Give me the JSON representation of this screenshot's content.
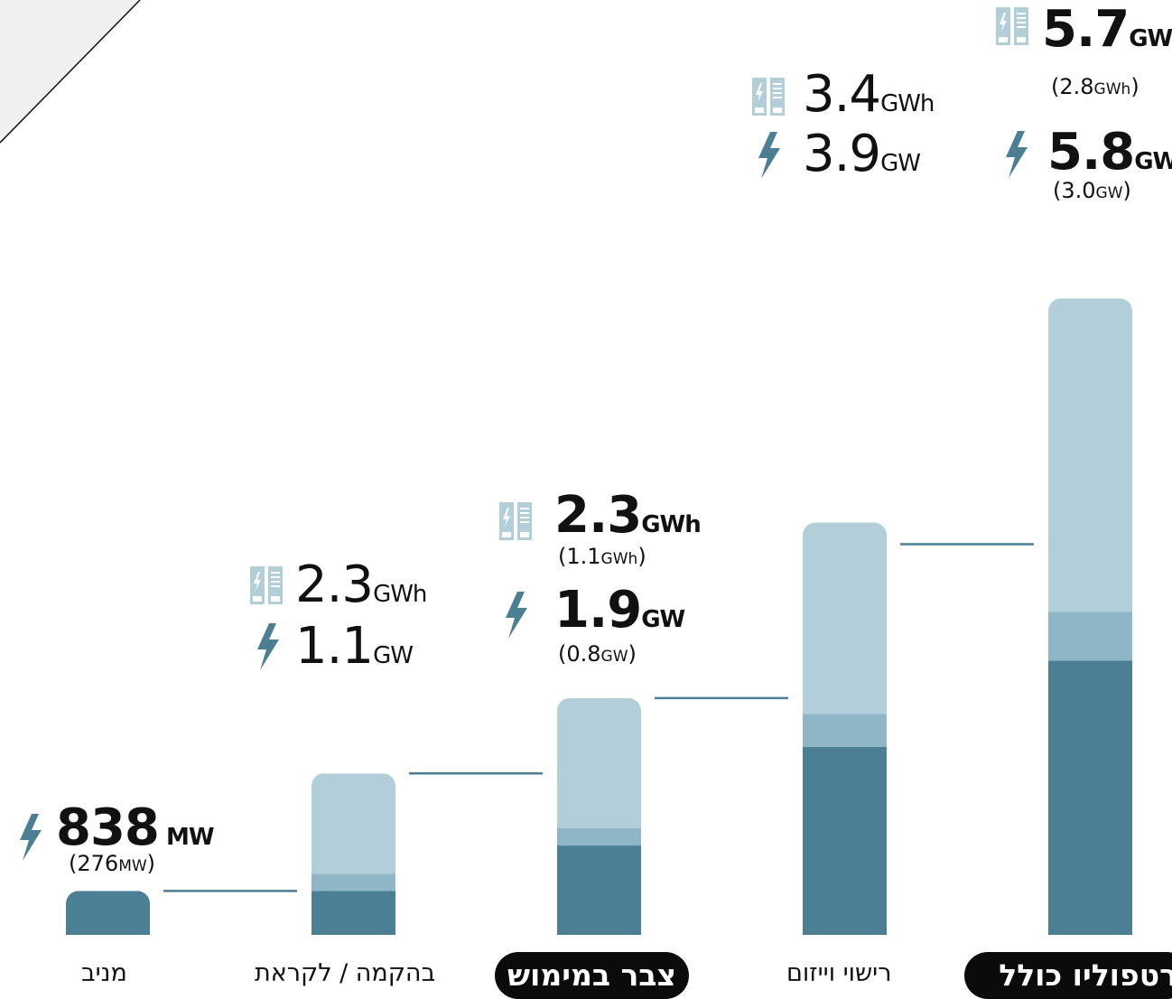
{
  "colors": {
    "dark": "#4a7f94",
    "mid": "#8eb6c6",
    "light": "#b1ced9",
    "icon": "#4a7f94",
    "icon_light": "#b1ced9",
    "pill": "#0b0b0b"
  },
  "chart_data": {
    "type": "bar",
    "categories": [
      "מניב",
      "בהקמה / לקראת",
      "צבר במימוש",
      "רישוי וייזום",
      "רטפוליו כולל"
    ],
    "category_style": [
      "plain",
      "plain",
      "pill",
      "plain",
      "pill"
    ],
    "segments": [
      {
        "values": [
          0.28,
          0.28,
          0.57,
          1.2,
          1.75
        ]
      },
      {
        "values": [
          0,
          0.11,
          0.11,
          0.21,
          0.31
        ]
      },
      {
        "values": [
          0,
          0.64,
          0.83,
          1.22,
          2.0
        ]
      }
    ],
    "ylim": [
      0,
      4.1
    ],
    "labels": [
      {
        "gw_value": "838",
        "gw_unit": "MW",
        "gw_sub": "276",
        "gw_sub_unit": "MW",
        "bold": true
      },
      {
        "gwh_value": "2.3",
        "gwh_unit": "GWh",
        "gw_value": "1.1",
        "gw_unit": "GW",
        "bold": false
      },
      {
        "gwh_value": "2.3",
        "gwh_unit": "GWh",
        "gwh_sub": "1.1",
        "gwh_sub_unit": "GWh",
        "gw_value": "1.9",
        "gw_unit": "GW",
        "gw_sub": "0.8",
        "gw_sub_unit": "GW",
        "bold": true
      },
      {
        "gwh_value": "3.4",
        "gwh_unit": "GWh",
        "gw_value": "3.9",
        "gw_unit": "GW",
        "bold": false
      },
      {
        "gwh_value": "5.7",
        "gwh_unit": "GWh",
        "gwh_sub": "2.8",
        "gwh_sub_unit": "GWh",
        "gw_value": "5.8",
        "gw_unit": "GW",
        "gw_sub": "3.0",
        "gw_sub_unit": "GW",
        "bold": true
      }
    ]
  }
}
